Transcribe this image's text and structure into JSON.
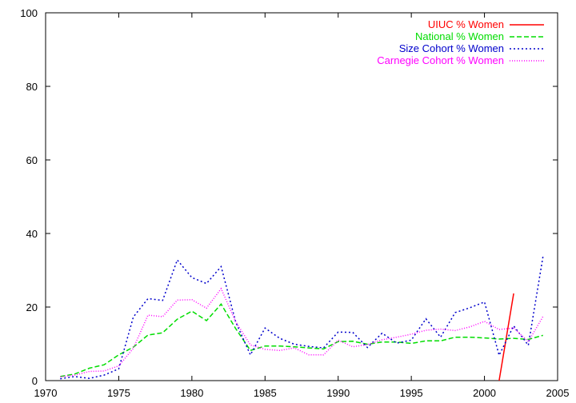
{
  "chart_data": {
    "type": "line",
    "title": "",
    "xlabel": "",
    "ylabel": "",
    "xlim": [
      1970,
      2005
    ],
    "ylim": [
      0,
      100
    ],
    "x_ticks": [
      1970,
      1975,
      1980,
      1985,
      1990,
      1995,
      2000,
      2005
    ],
    "y_ticks": [
      0,
      20,
      40,
      60,
      80,
      100
    ],
    "grid": false,
    "legend_position": "top-right",
    "series": [
      {
        "name": "UIUC % Women",
        "color": "#ff0000",
        "dash": "solid",
        "x": [
          2001,
          2002
        ],
        "y": [
          0,
          23.7
        ]
      },
      {
        "name": "National % Women",
        "color": "#00dd00",
        "dash": "dashed",
        "x": [
          1971,
          1972,
          1973,
          1974,
          1975,
          1976,
          1977,
          1978,
          1979,
          1980,
          1981,
          1982,
          1983,
          1984,
          1985,
          1986,
          1987,
          1988,
          1989,
          1990,
          1991,
          1992,
          1993,
          1994,
          1995,
          1996,
          1997,
          1998,
          1999,
          2000,
          2001,
          2002,
          2003,
          2004
        ],
        "y": [
          1.1,
          1.8,
          3.4,
          4.3,
          7.0,
          9.1,
          12.4,
          13.0,
          16.7,
          18.9,
          16.3,
          20.8,
          14.1,
          8.2,
          9.4,
          9.4,
          9.2,
          8.9,
          8.6,
          10.6,
          10.7,
          9.9,
          10.5,
          10.5,
          10.1,
          10.8,
          10.8,
          11.8,
          11.8,
          11.6,
          11.3,
          11.5,
          11.2,
          12.3
        ]
      },
      {
        "name": "Size Cohort % Women",
        "color": "#0000cc",
        "dash": "dotted",
        "x": [
          1971,
          1972,
          1973,
          1974,
          1975,
          1976,
          1977,
          1978,
          1979,
          1980,
          1981,
          1982,
          1983,
          1984,
          1985,
          1986,
          1987,
          1988,
          1989,
          1990,
          1991,
          1992,
          1993,
          1994,
          1995,
          1996,
          1997,
          1998,
          1999,
          2000,
          2001,
          2002,
          2003,
          2004
        ],
        "y": [
          0.5,
          1.1,
          0.6,
          1.5,
          3.2,
          17.3,
          22.3,
          21.8,
          32.8,
          28.0,
          26.4,
          31.0,
          15.9,
          7.0,
          14.3,
          11.5,
          9.9,
          9.3,
          8.9,
          13.2,
          13.1,
          9.0,
          12.9,
          10.2,
          11.0,
          16.8,
          11.8,
          18.5,
          19.8,
          21.4,
          6.9,
          14.9,
          9.6,
          33.7
        ]
      },
      {
        "name": "Carnegie Cohort % Women",
        "color": "#ff00ff",
        "dash": "dotted-fine",
        "x": [
          1971,
          1972,
          1973,
          1974,
          1975,
          1976,
          1977,
          1978,
          1979,
          1980,
          1981,
          1982,
          1983,
          1984,
          1985,
          1986,
          1987,
          1988,
          1989,
          1990,
          1991,
          1992,
          1993,
          1994,
          1995,
          1996,
          1997,
          1998,
          1999,
          2000,
          2001,
          2002,
          2003,
          2004
        ],
        "y": [
          1.0,
          1.5,
          2.5,
          2.6,
          4.0,
          8.8,
          17.8,
          17.4,
          21.9,
          22.0,
          19.7,
          25.0,
          16.0,
          9.7,
          8.5,
          8.2,
          8.9,
          7.0,
          7.0,
          11.0,
          9.2,
          9.8,
          11.1,
          11.8,
          12.6,
          13.7,
          14.0,
          13.6,
          14.6,
          16.1,
          13.9,
          14.3,
          10.6,
          17.4
        ]
      }
    ]
  }
}
